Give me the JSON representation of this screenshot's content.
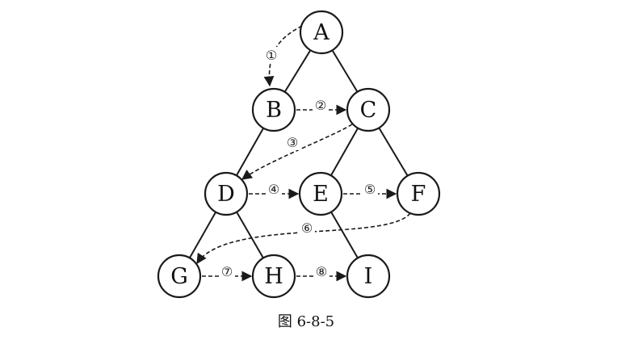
{
  "nodes": [
    {
      "id": "A",
      "label": "A"
    },
    {
      "id": "B",
      "label": "B"
    },
    {
      "id": "C",
      "label": "C"
    },
    {
      "id": "D",
      "label": "D"
    },
    {
      "id": "E",
      "label": "E"
    },
    {
      "id": "F",
      "label": "F"
    },
    {
      "id": "G",
      "label": "G"
    },
    {
      "id": "H",
      "label": "H"
    },
    {
      "id": "I",
      "label": "I"
    }
  ],
  "edges": [
    {
      "from": "A",
      "to": "B"
    },
    {
      "from": "A",
      "to": "C"
    },
    {
      "from": "B",
      "to": "D"
    },
    {
      "from": "C",
      "to": "E"
    },
    {
      "from": "C",
      "to": "F"
    },
    {
      "from": "D",
      "to": "G"
    },
    {
      "from": "D",
      "to": "H"
    },
    {
      "from": "E",
      "to": "I"
    }
  ],
  "traversal": [
    {
      "step": "①",
      "from": "A",
      "to": "B"
    },
    {
      "step": "②",
      "from": "B",
      "to": "C"
    },
    {
      "step": "③",
      "from": "C",
      "to": "D"
    },
    {
      "step": "④",
      "from": "D",
      "to": "E"
    },
    {
      "step": "⑤",
      "from": "E",
      "to": "F"
    },
    {
      "step": "⑥",
      "from": "F",
      "to": "G"
    },
    {
      "step": "⑦",
      "from": "G",
      "to": "H"
    },
    {
      "step": "⑧",
      "from": "H",
      "to": "I"
    }
  ],
  "caption": "图 6-8-5"
}
